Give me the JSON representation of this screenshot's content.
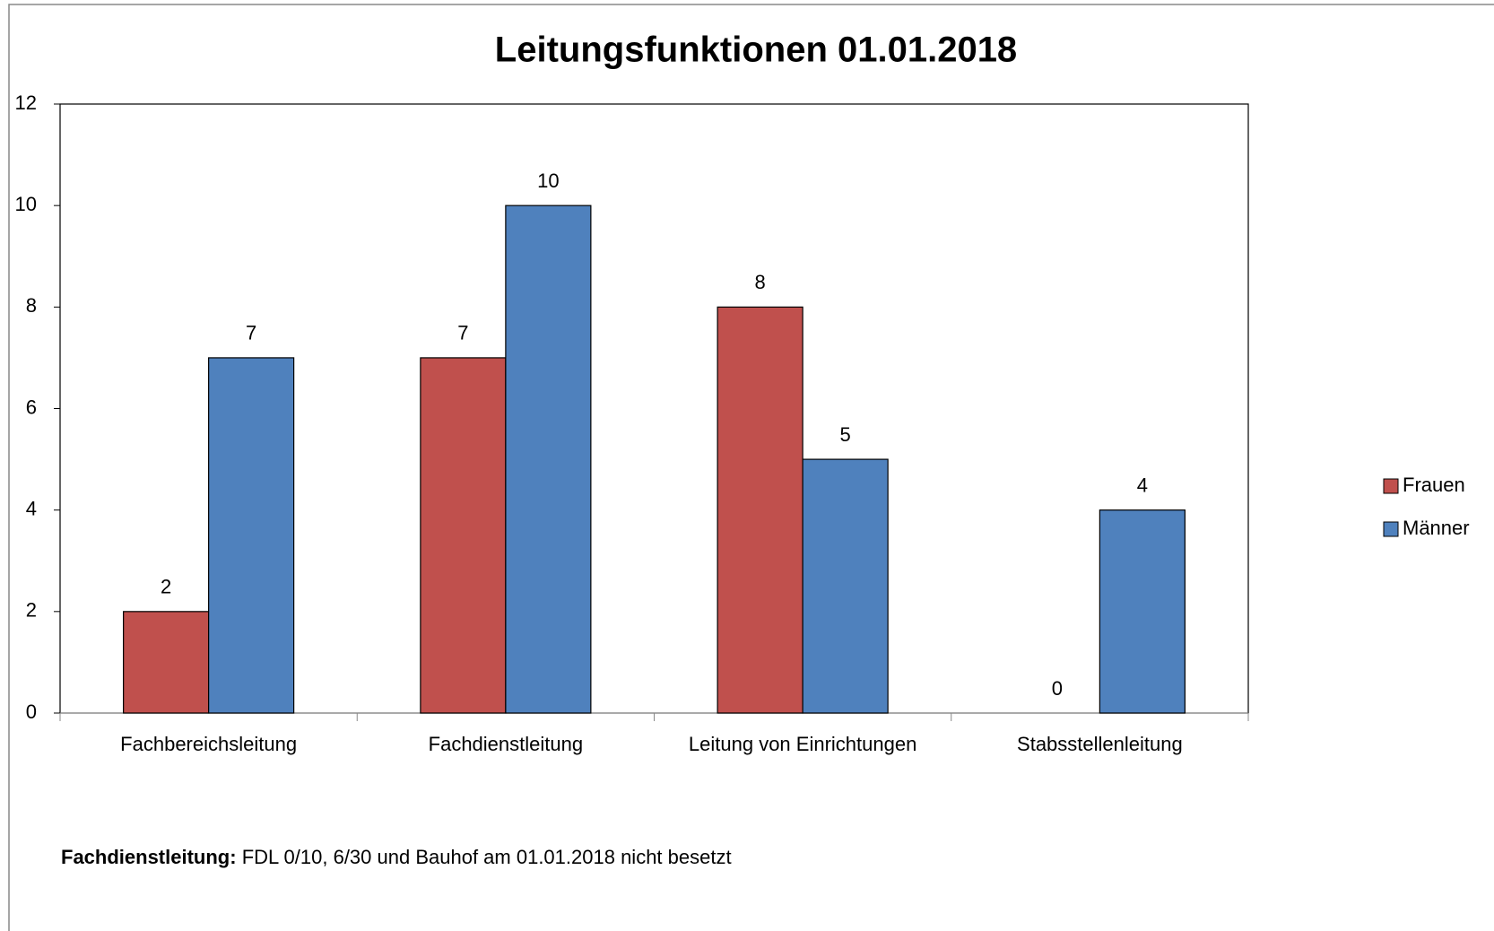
{
  "chart_data": {
    "type": "bar",
    "title": "Leitungsfunktionen 01.01.2018",
    "categories": [
      "Fachbereichsleitung",
      "Fachdienstleitung",
      "Leitung von Einrichtungen",
      "Stabsstellenleitung"
    ],
    "series": [
      {
        "name": "Frauen",
        "color": "#c0504d",
        "values": [
          2,
          7,
          8,
          0
        ]
      },
      {
        "name": "Männer",
        "color": "#4f81bd",
        "values": [
          7,
          10,
          5,
          4
        ]
      }
    ],
    "ylim": [
      0,
      12
    ],
    "yticks": [
      0,
      2,
      4,
      6,
      8,
      10,
      12
    ],
    "grid": false,
    "legend": "right",
    "note": {
      "label": "Fachdienstleitung:",
      "text": "FDL 0/10, 6/30 und Bauhof am 01.01.2018 nicht besetzt"
    }
  }
}
